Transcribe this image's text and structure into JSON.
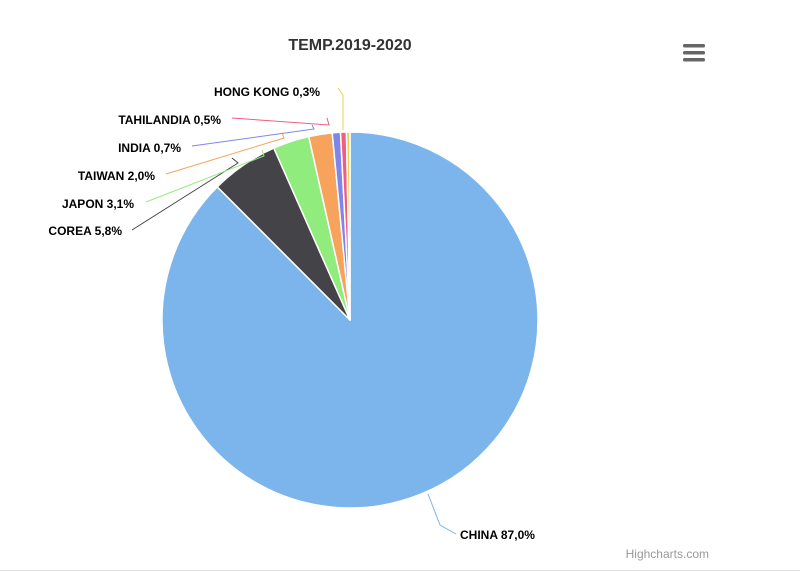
{
  "chart_data": {
    "type": "pie",
    "title": "TEMP.2019-2020",
    "series": [
      {
        "data": [
          {
            "name": "CHINA",
            "value": 87.0,
            "label": "CHINA 87,0%",
            "color": "#7cb5ec"
          },
          {
            "name": "COREA",
            "value": 5.8,
            "label": "COREA 5,8%",
            "color": "#434348"
          },
          {
            "name": "JAPON",
            "value": 3.1,
            "label": "JAPON 3,1%",
            "color": "#90ed7d"
          },
          {
            "name": "TAIWAN",
            "value": 2.0,
            "label": "TAIWAN 2,0%",
            "color": "#f7a35c"
          },
          {
            "name": "INDIA",
            "value": 0.7,
            "label": "INDIA 0,7%",
            "color": "#8085e9"
          },
          {
            "name": "TAHILANDIA",
            "value": 0.5,
            "label": "TAHILANDIA 0,5%",
            "color": "#f15c80"
          },
          {
            "name": "HONG KONG",
            "value": 0.3,
            "label": "HONG KONG 0,3%",
            "color": "#e4d354"
          }
        ]
      }
    ]
  },
  "credits": "Highcharts.com",
  "menu_icon": "hamburger-menu-icon"
}
